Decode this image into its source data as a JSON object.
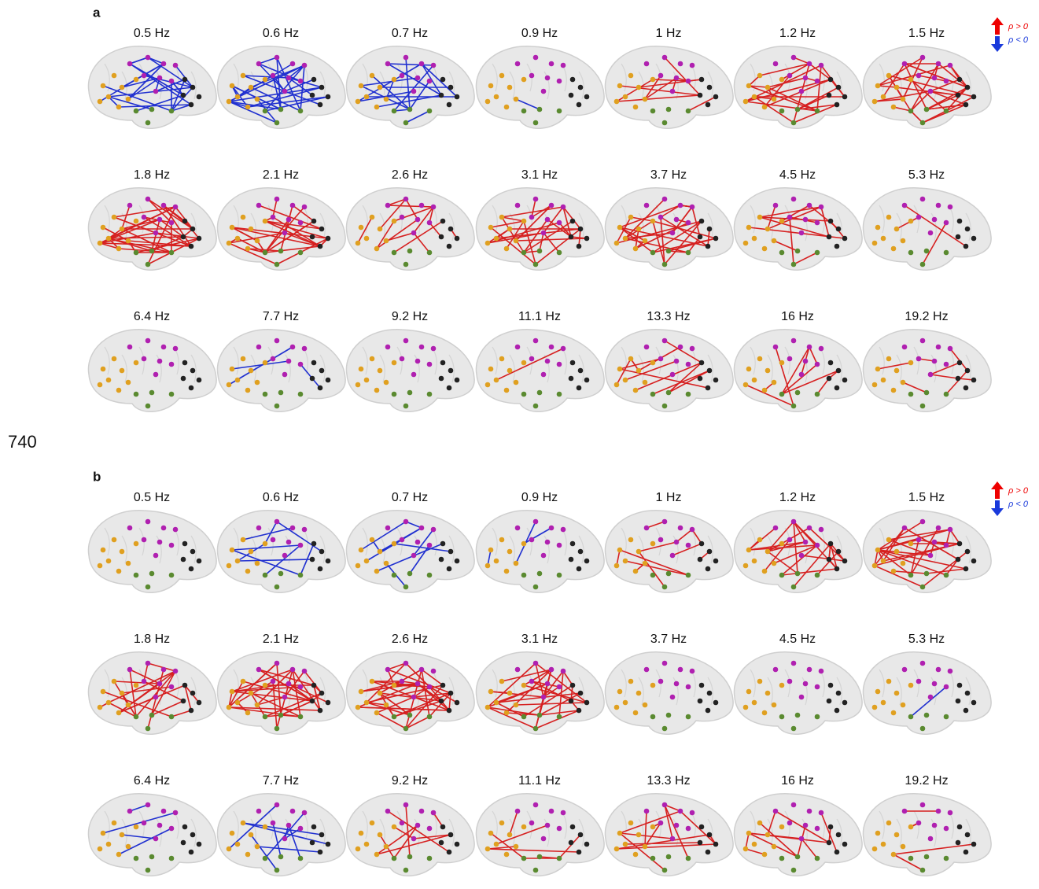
{
  "panels": [
    {
      "label": "a",
      "frequencies": [
        "0.5 Hz",
        "0.6 Hz",
        "0.7 Hz",
        "0.9 Hz",
        "1 Hz",
        "1.2 Hz",
        "1.5 Hz",
        "1.8 Hz",
        "2.1 Hz",
        "2.6 Hz",
        "3.1 Hz",
        "3.7 Hz",
        "4.5 Hz",
        "5.3 Hz",
        "6.4 Hz",
        "7.7 Hz",
        "9.2 Hz",
        "11.1 Hz",
        "13.3 Hz",
        "16 Hz",
        "19.2 Hz"
      ],
      "legend": {
        "positive": "ρ > 0",
        "negative": "ρ < 0"
      }
    },
    {
      "label": "b",
      "frequencies": [
        "0.5 Hz",
        "0.6 Hz",
        "0.7 Hz",
        "0.9 Hz",
        "1 Hz",
        "1.2 Hz",
        "1.5 Hz",
        "1.8 Hz",
        "2.1 Hz",
        "2.6 Hz",
        "3.1 Hz",
        "3.7 Hz",
        "4.5 Hz",
        "5.3 Hz",
        "6.4 Hz",
        "7.7 Hz",
        "9.2 Hz",
        "11.1 Hz",
        "13.3 Hz",
        "16 Hz",
        "19.2 Hz"
      ],
      "legend": {
        "positive": "ρ > 0",
        "negative": "ρ < 0"
      }
    }
  ],
  "page_number": "740"
}
